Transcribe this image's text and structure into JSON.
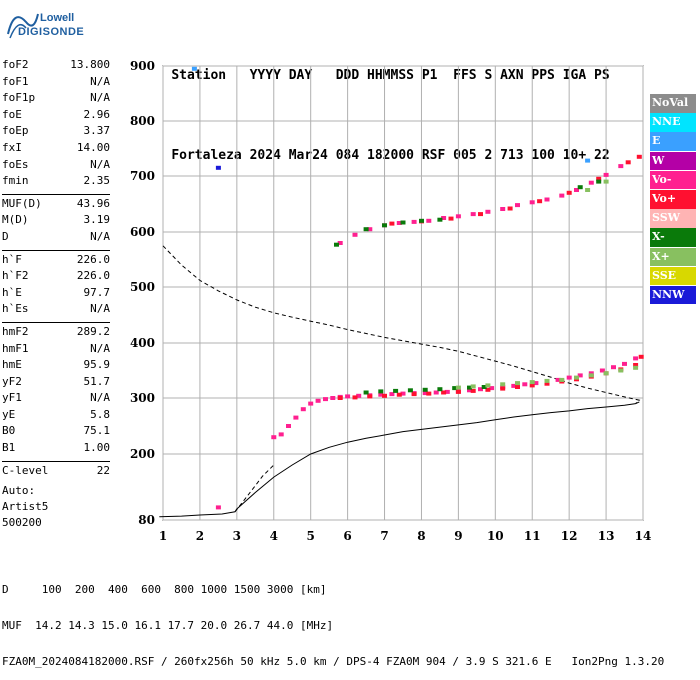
{
  "logo": {
    "line1": "Lowell",
    "line2": "DIGISONDE"
  },
  "header": {
    "row1": [
      "Station",
      "YYYY DAY",
      "DDD",
      "HHMMSS",
      "P1",
      "FFS",
      "S",
      "AXN",
      "PPS",
      "IGA",
      "PS"
    ],
    "row2": [
      "Fortaleza",
      "2024 Mar24",
      "084",
      "182000",
      "RSF",
      "005",
      "2",
      "713",
      "100",
      "10+",
      "22"
    ]
  },
  "params": {
    "group1": [
      {
        "label": "foF2",
        "value": "13.800"
      },
      {
        "label": "foF1",
        "value": "N/A"
      },
      {
        "label": "foF1p",
        "value": "N/A"
      },
      {
        "label": "foE",
        "value": "2.96"
      },
      {
        "label": "foEp",
        "value": "3.37"
      },
      {
        "label": "fxI",
        "value": "14.00"
      },
      {
        "label": "foEs",
        "value": "N/A"
      },
      {
        "label": "fmin",
        "value": "2.35"
      }
    ],
    "group2": [
      {
        "label": "MUF(D)",
        "value": "43.96"
      },
      {
        "label": "M(D)",
        "value": "3.19"
      },
      {
        "label": "D",
        "value": "N/A"
      }
    ],
    "group3": [
      {
        "label": "h`F",
        "value": "226.0"
      },
      {
        "label": "h`F2",
        "value": "226.0"
      },
      {
        "label": "h`E",
        "value": "97.7"
      },
      {
        "label": "h`Es",
        "value": "N/A"
      }
    ],
    "group4": [
      {
        "label": "hmF2",
        "value": "289.2"
      },
      {
        "label": "hmF1",
        "value": "N/A"
      },
      {
        "label": "hmE",
        "value": "95.9"
      },
      {
        "label": "yF2",
        "value": "51.7"
      },
      {
        "label": "yF1",
        "value": "N/A"
      },
      {
        "label": "yE",
        "value": "5.8"
      },
      {
        "label": "B0",
        "value": "75.1"
      },
      {
        "label": "B1",
        "value": "1.00"
      }
    ],
    "group5": [
      {
        "label": "C-level",
        "value": "22"
      }
    ]
  },
  "auto": {
    "line1": "Auto:",
    "line2": "Artist5",
    "line3": "500200"
  },
  "legend": [
    {
      "label": "NoVal",
      "color": "#8c8c8c"
    },
    {
      "label": "NNE",
      "color": "#00e4ff"
    },
    {
      "label": "E",
      "color": "#3aa0ff"
    },
    {
      "label": "W",
      "color": "#b400a6"
    },
    {
      "label": "Vo-",
      "color": "#ff2090"
    },
    {
      "label": "Vo+",
      "color": "#ff1030"
    },
    {
      "label": "SSW",
      "color": "#ffb4b4"
    },
    {
      "label": "X-",
      "color": "#0a7a0a"
    },
    {
      "label": "X+",
      "color": "#88c060"
    },
    {
      "label": "SSE",
      "color": "#d8d800"
    },
    {
      "label": "NNW",
      "color": "#1a1ad8"
    }
  ],
  "footer": {
    "line1": "D     100  200  400  600  800 1000 1500 3000 [km]",
    "line2": "MUF  14.2 14.3 15.0 16.1 17.7 20.0 26.7 44.0 [MHz]",
    "line3": "FZA0M_2024084182000.RSF / 260fx256h 50 kHz 5.0 km / DPS-4 FZA0M 904 / 3.9 S 321.6 E   Ion2Png 1.3.20"
  },
  "chart_data": {
    "type": "scatter",
    "title": "",
    "xlabel": "",
    "ylabel": "",
    "xlim": [
      1,
      14
    ],
    "ylim": [
      80,
      900
    ],
    "x_ticks": [
      1,
      2,
      3,
      4,
      5,
      6,
      7,
      8,
      9,
      10,
      11,
      12,
      13,
      14
    ],
    "y_ticks": [
      80,
      200,
      300,
      400,
      500,
      600,
      700,
      800,
      900
    ],
    "grid": true,
    "series": [
      {
        "name": "Vo-",
        "color": "#ff2090",
        "points": [
          [
            4.0,
            230
          ],
          [
            4.2,
            235
          ],
          [
            4.4,
            250
          ],
          [
            4.6,
            265
          ],
          [
            4.8,
            280
          ],
          [
            5.0,
            290
          ],
          [
            5.2,
            295
          ],
          [
            5.4,
            298
          ],
          [
            5.6,
            300
          ],
          [
            5.8,
            302
          ],
          [
            6.0,
            303
          ],
          [
            6.3,
            304
          ],
          [
            6.6,
            305
          ],
          [
            6.9,
            306
          ],
          [
            7.2,
            307
          ],
          [
            7.5,
            308
          ],
          [
            7.8,
            309
          ],
          [
            8.1,
            309
          ],
          [
            8.4,
            310
          ],
          [
            8.7,
            311
          ],
          [
            9.0,
            312
          ],
          [
            9.3,
            314
          ],
          [
            9.6,
            316
          ],
          [
            9.9,
            318
          ],
          [
            10.2,
            320
          ],
          [
            10.5,
            322
          ],
          [
            10.8,
            325
          ],
          [
            11.1,
            327
          ],
          [
            11.4,
            330
          ],
          [
            11.7,
            333
          ],
          [
            12.0,
            337
          ],
          [
            12.3,
            341
          ],
          [
            12.6,
            345
          ],
          [
            12.9,
            350
          ],
          [
            13.2,
            356
          ],
          [
            13.5,
            362
          ],
          [
            13.8,
            372
          ],
          [
            5.8,
            580
          ],
          [
            6.2,
            595
          ],
          [
            6.6,
            605
          ],
          [
            7.0,
            612
          ],
          [
            7.4,
            616
          ],
          [
            7.8,
            618
          ],
          [
            8.2,
            620
          ],
          [
            8.6,
            625
          ],
          [
            9.0,
            628
          ],
          [
            9.4,
            632
          ],
          [
            9.8,
            636
          ],
          [
            10.2,
            641
          ],
          [
            10.6,
            648
          ],
          [
            11.0,
            653
          ],
          [
            11.4,
            658
          ],
          [
            11.8,
            665
          ],
          [
            12.2,
            675
          ],
          [
            12.6,
            688
          ],
          [
            13.0,
            702
          ],
          [
            13.4,
            718
          ],
          [
            2.5,
            103
          ]
        ]
      },
      {
        "name": "Vo+",
        "color": "#ff1030",
        "points": [
          [
            5.8,
            300
          ],
          [
            6.2,
            301
          ],
          [
            6.6,
            303
          ],
          [
            7.0,
            304
          ],
          [
            7.4,
            306
          ],
          [
            7.8,
            307
          ],
          [
            8.2,
            308
          ],
          [
            8.6,
            310
          ],
          [
            9.0,
            311
          ],
          [
            9.4,
            313
          ],
          [
            9.8,
            315
          ],
          [
            10.2,
            317
          ],
          [
            10.6,
            320
          ],
          [
            11.0,
            323
          ],
          [
            11.4,
            326
          ],
          [
            11.8,
            330
          ],
          [
            12.2,
            334
          ],
          [
            12.6,
            339
          ],
          [
            13.0,
            345
          ],
          [
            13.4,
            352
          ],
          [
            13.8,
            360
          ],
          [
            13.95,
            375
          ],
          [
            7.2,
            615
          ],
          [
            8.0,
            619
          ],
          [
            8.8,
            624
          ],
          [
            9.6,
            632
          ],
          [
            10.4,
            642
          ],
          [
            11.2,
            655
          ],
          [
            12.0,
            670
          ],
          [
            12.8,
            695
          ],
          [
            13.6,
            725
          ],
          [
            13.9,
            735
          ]
        ]
      },
      {
        "name": "X-",
        "color": "#0a7a0a",
        "points": [
          [
            6.5,
            310
          ],
          [
            6.9,
            312
          ],
          [
            7.3,
            313
          ],
          [
            7.7,
            314
          ],
          [
            8.1,
            315
          ],
          [
            8.5,
            316
          ],
          [
            8.9,
            318
          ],
          [
            9.3,
            319
          ],
          [
            9.7,
            320
          ],
          [
            5.7,
            577
          ],
          [
            6.5,
            605
          ],
          [
            7.0,
            612
          ],
          [
            7.5,
            617
          ],
          [
            8.0,
            620
          ],
          [
            8.5,
            622
          ],
          [
            12.3,
            680
          ],
          [
            12.8,
            690
          ]
        ]
      },
      {
        "name": "X+",
        "color": "#88c060",
        "points": [
          [
            9.0,
            319
          ],
          [
            9.4,
            321
          ],
          [
            9.8,
            323
          ],
          [
            10.2,
            325
          ],
          [
            10.6,
            327
          ],
          [
            11.0,
            329
          ],
          [
            11.4,
            331
          ],
          [
            11.8,
            333
          ],
          [
            12.2,
            337
          ],
          [
            12.6,
            341
          ],
          [
            13.0,
            345
          ],
          [
            13.4,
            350
          ],
          [
            13.8,
            355
          ],
          [
            12.5,
            675
          ],
          [
            13.0,
            690
          ]
        ]
      },
      {
        "name": "NNW",
        "color": "#1a1ad8",
        "points": [
          [
            2.5,
            715
          ]
        ]
      },
      {
        "name": "E",
        "color": "#3aa0ff",
        "points": [
          [
            1.85,
            895
          ],
          [
            12.5,
            728
          ]
        ]
      }
    ],
    "lines": [
      {
        "name": "true-height",
        "style": "solid",
        "points": [
          [
            0.9,
            86
          ],
          [
            1.5,
            87
          ],
          [
            2.0,
            89
          ],
          [
            2.6,
            91
          ],
          [
            2.95,
            95
          ],
          [
            3.0,
            100
          ],
          [
            3.5,
            130
          ],
          [
            4.0,
            158
          ],
          [
            4.5,
            180
          ],
          [
            5.0,
            200
          ],
          [
            5.5,
            212
          ],
          [
            6.0,
            221
          ],
          [
            6.5,
            228
          ],
          [
            7.0,
            234
          ],
          [
            7.5,
            240
          ],
          [
            8.0,
            244
          ],
          [
            8.5,
            248
          ],
          [
            9.0,
            252
          ],
          [
            9.5,
            256
          ],
          [
            10.0,
            261
          ],
          [
            10.5,
            266
          ],
          [
            11.0,
            270
          ],
          [
            11.5,
            274
          ],
          [
            12.0,
            277
          ],
          [
            12.5,
            281
          ],
          [
            13.0,
            284
          ],
          [
            13.5,
            287
          ],
          [
            13.8,
            290
          ],
          [
            13.9,
            293
          ]
        ]
      },
      {
        "name": "profile-extrapolation",
        "style": "dashed",
        "points": [
          [
            1.0,
            575
          ],
          [
            1.5,
            540
          ],
          [
            2.0,
            512
          ],
          [
            2.5,
            493
          ],
          [
            3.0,
            477
          ],
          [
            3.5,
            464
          ],
          [
            4.0,
            454
          ],
          [
            4.5,
            446
          ],
          [
            5.0,
            439
          ],
          [
            5.5,
            432
          ],
          [
            6.0,
            424
          ],
          [
            6.5,
            417
          ],
          [
            7.0,
            410
          ],
          [
            7.5,
            404
          ],
          [
            8.0,
            398
          ],
          [
            8.5,
            392
          ],
          [
            9.0,
            385
          ],
          [
            9.5,
            376
          ],
          [
            10.0,
            367
          ],
          [
            10.5,
            358
          ],
          [
            11.0,
            348
          ],
          [
            11.5,
            338
          ],
          [
            12.0,
            327
          ],
          [
            12.5,
            318
          ],
          [
            13.0,
            310
          ],
          [
            13.5,
            302
          ],
          [
            13.9,
            296
          ],
          [
            13.8,
            290
          ]
        ]
      },
      {
        "name": "E-layer-connector",
        "style": "dashed",
        "points": [
          [
            2.95,
            95
          ],
          [
            3.3,
            125
          ],
          [
            3.7,
            160
          ],
          [
            4.0,
            180
          ]
        ]
      }
    ]
  }
}
